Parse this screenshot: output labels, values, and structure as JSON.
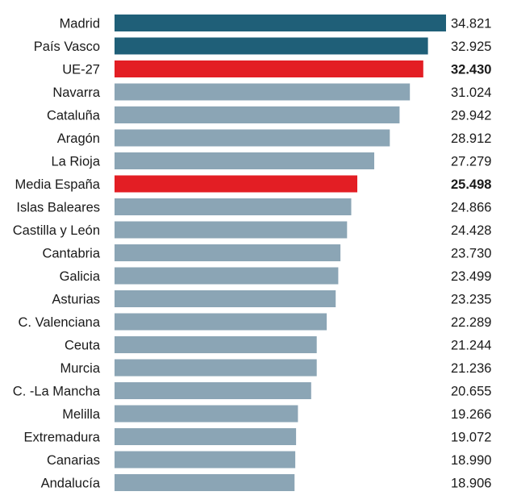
{
  "chart_data": {
    "type": "bar",
    "orientation": "horizontal",
    "categories": [
      "Madrid",
      "País Vasco",
      "UE-27",
      "Navarra",
      "Cataluña",
      "Aragón",
      "La Rioja",
      "Media España",
      "Islas Baleares",
      "Castilla y León",
      "Cantabria",
      "Galicia",
      "Asturias",
      "C. Valenciana",
      "Ceuta",
      "Murcia",
      "C. -La Mancha",
      "Melilla",
      "Extremadura",
      "Canarias",
      "Andalucía"
    ],
    "values": [
      34821,
      32925,
      32430,
      31024,
      29942,
      28912,
      27279,
      25498,
      24866,
      24428,
      23730,
      23499,
      23235,
      22289,
      21244,
      21236,
      20655,
      19266,
      19072,
      18990,
      18906
    ],
    "value_labels": [
      "34.821",
      "32.925",
      "32.430",
      "31.024",
      "29.942",
      "28.912",
      "27.279",
      "25.498",
      "24.866",
      "24.428",
      "23.730",
      "23.499",
      "23.235",
      "22.289",
      "21.244",
      "21.236",
      "20.655",
      "19.266",
      "19.072",
      "18.990",
      "18.906"
    ],
    "bar_colors": [
      "#1f5f78",
      "#1f5f78",
      "#e31e24",
      "#8ba5b5",
      "#8ba5b5",
      "#8ba5b5",
      "#8ba5b5",
      "#e31e24",
      "#8ba5b5",
      "#8ba5b5",
      "#8ba5b5",
      "#8ba5b5",
      "#8ba5b5",
      "#8ba5b5",
      "#8ba5b5",
      "#8ba5b5",
      "#8ba5b5",
      "#8ba5b5",
      "#8ba5b5",
      "#8ba5b5",
      "#8ba5b5"
    ],
    "bold_labels": [
      false,
      false,
      true,
      false,
      false,
      false,
      false,
      true,
      false,
      false,
      false,
      false,
      false,
      false,
      false,
      false,
      false,
      false,
      false,
      false,
      false
    ],
    "xlim": [
      0,
      34821
    ],
    "title": "",
    "xlabel": "",
    "ylabel": "",
    "grid": false,
    "legend": "none"
  }
}
